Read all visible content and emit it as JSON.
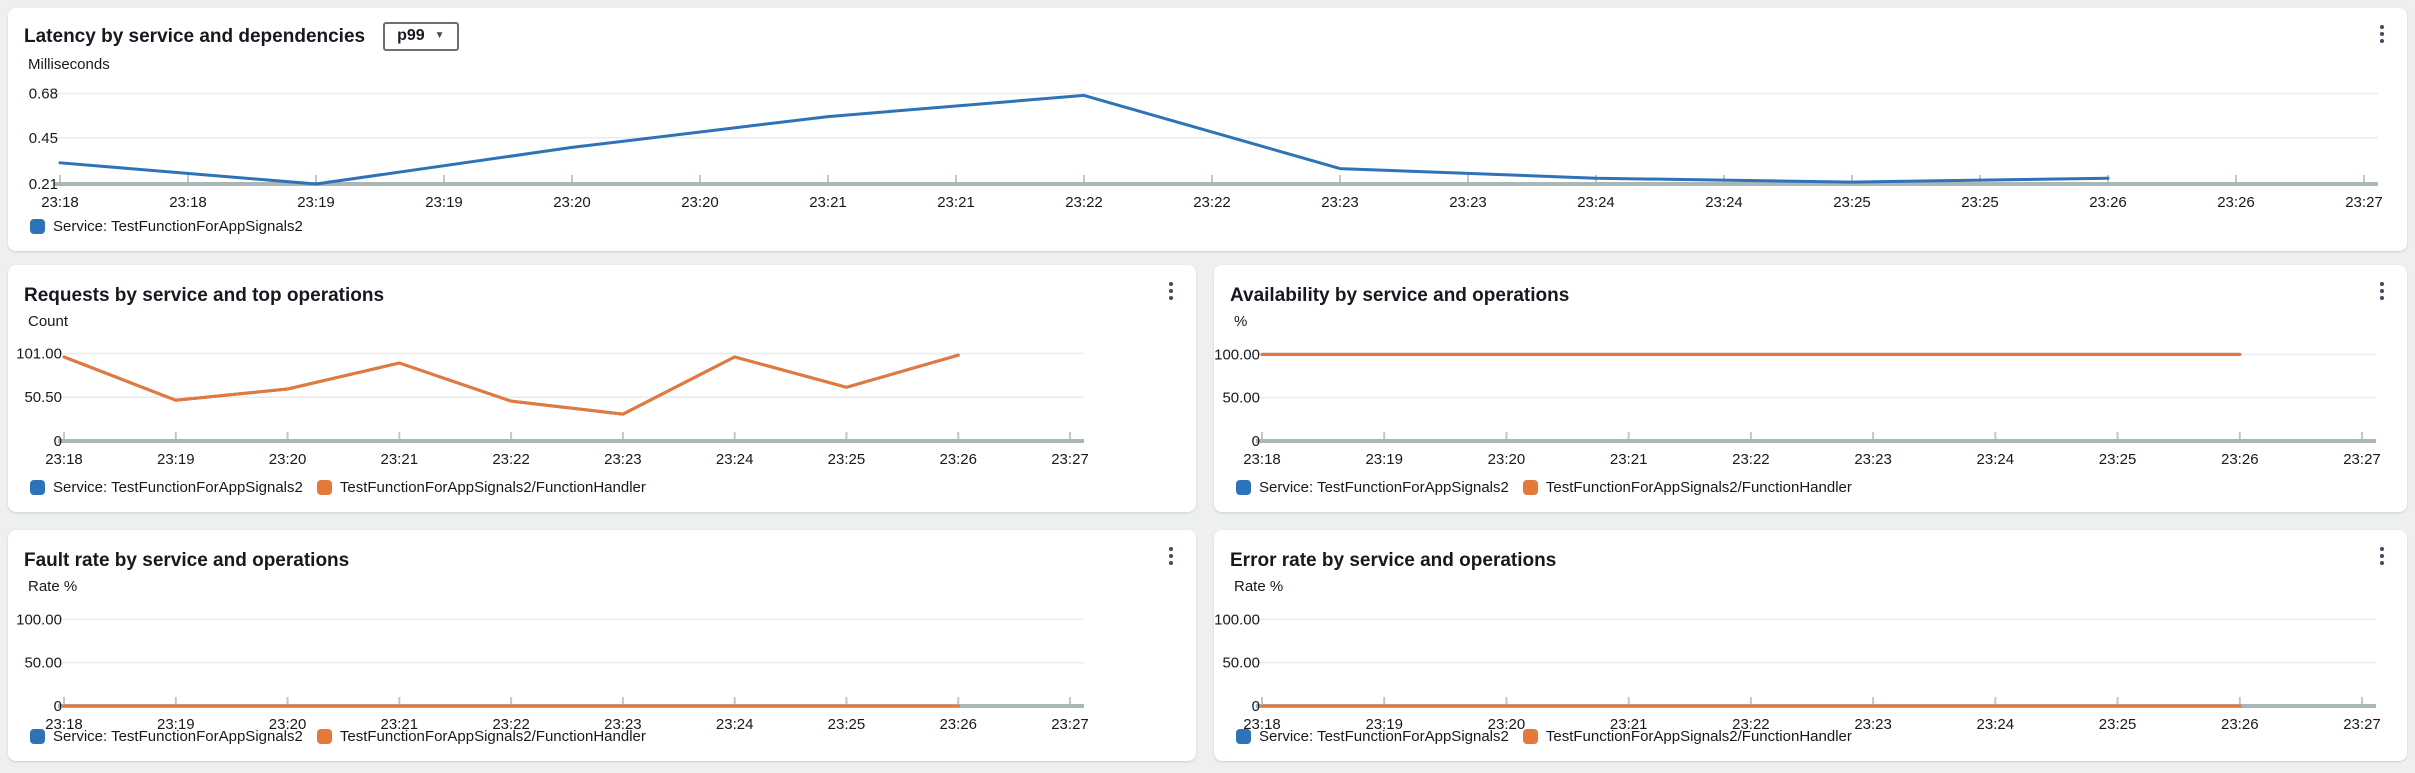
{
  "colors": {
    "blue": "#2e72b8",
    "orange": "#e5793a",
    "grid": "#e9ebed",
    "axis": "#aab7b8",
    "tick_stub": "#c1c8ca",
    "text": "#16191f",
    "panel_bg": "#ffffff",
    "page_bg": "#eef0f0"
  },
  "ui": {
    "stat_dropdown": {
      "value": "p99",
      "caret": "▼"
    },
    "panel_menu_icon": "kebab-vertical-dots"
  },
  "chart_data": [
    {
      "id": "latency",
      "type": "line",
      "title": "Latency by service and dependencies",
      "stat_selector": "p99",
      "ylabel": "Milliseconds",
      "ylim": [
        0.21,
        0.75
      ],
      "y_ticks": [
        {
          "v": 0.68,
          "label": "0.68"
        },
        {
          "v": 0.45,
          "label": "0.45"
        },
        {
          "v": 0.21,
          "label": "0.21"
        }
      ],
      "x_tick_labels": [
        "23:18",
        "23:18",
        "23:19",
        "23:19",
        "23:20",
        "23:20",
        "23:21",
        "23:21",
        "23:22",
        "23:22",
        "23:23",
        "23:23",
        "23:24",
        "23:24",
        "23:25",
        "23:25",
        "23:26",
        "23:26",
        "23:27"
      ],
      "x": [
        "23:18",
        "23:19",
        "23:20",
        "23:21",
        "23:22",
        "23:23",
        "23:24",
        "23:25",
        "23:26"
      ],
      "series": [
        {
          "name": "Service: TestFunctionForAppSignals2",
          "color": "#2e72b8",
          "values": [
            0.32,
            0.21,
            0.4,
            0.56,
            0.67,
            0.29,
            0.24,
            0.22,
            0.24
          ]
        }
      ],
      "legend": [
        {
          "label": "Service: TestFunctionForAppSignals2",
          "color": "#2e72b8"
        }
      ],
      "legend_position": "bottom",
      "grid": true
    },
    {
      "id": "requests",
      "type": "line",
      "title": "Requests by service and top operations",
      "ylabel": "Count",
      "ylim": [
        0,
        120
      ],
      "y_ticks": [
        {
          "v": 101,
          "label": "101.00"
        },
        {
          "v": 50.5,
          "label": "50.50"
        },
        {
          "v": 0,
          "label": "0"
        }
      ],
      "x_tick_labels": [
        "23:18",
        "23:19",
        "23:20",
        "23:21",
        "23:22",
        "23:23",
        "23:24",
        "23:25",
        "23:26",
        "23:27"
      ],
      "x": [
        "23:18",
        "23:19",
        "23:20",
        "23:21",
        "23:22",
        "23:23",
        "23:24",
        "23:25",
        "23:26"
      ],
      "series": [
        {
          "name": "Service: TestFunctionForAppSignals2",
          "color": "#2e72b8",
          "values": [
            97,
            47,
            60,
            90,
            46,
            31,
            97,
            62,
            99
          ]
        },
        {
          "name": "TestFunctionForAppSignals2/FunctionHandler",
          "color": "#e5793a",
          "values": [
            97,
            47,
            60,
            90,
            46,
            31,
            97,
            62,
            99
          ]
        }
      ],
      "legend": [
        {
          "label": "Service: TestFunctionForAppSignals2",
          "color": "#2e72b8"
        },
        {
          "label": "TestFunctionForAppSignals2/FunctionHandler",
          "color": "#e5793a"
        }
      ],
      "legend_position": "bottom",
      "grid": true
    },
    {
      "id": "availability",
      "type": "line",
      "title": "Availability by service and operations",
      "ylabel": "%",
      "ylim": [
        0,
        120
      ],
      "y_ticks": [
        {
          "v": 100,
          "label": "100.00"
        },
        {
          "v": 50,
          "label": "50.00"
        },
        {
          "v": 0,
          "label": "0"
        }
      ],
      "x_tick_labels": [
        "23:18",
        "23:19",
        "23:20",
        "23:21",
        "23:22",
        "23:23",
        "23:24",
        "23:25",
        "23:26",
        "23:27"
      ],
      "x": [
        "23:18",
        "23:19",
        "23:20",
        "23:21",
        "23:22",
        "23:23",
        "23:24",
        "23:25",
        "23:26"
      ],
      "series": [
        {
          "name": "Service: TestFunctionForAppSignals2",
          "color": "#2e72b8",
          "values": [
            100,
            100,
            100,
            100,
            100,
            100,
            100,
            100,
            100
          ]
        },
        {
          "name": "TestFunctionForAppSignals2/FunctionHandler",
          "color": "#e5793a",
          "values": [
            100,
            100,
            100,
            100,
            100,
            100,
            100,
            100,
            100
          ]
        }
      ],
      "legend": [
        {
          "label": "Service: TestFunctionForAppSignals2",
          "color": "#2e72b8"
        },
        {
          "label": "TestFunctionForAppSignals2/FunctionHandler",
          "color": "#e5793a"
        }
      ],
      "legend_position": "bottom",
      "grid": true
    },
    {
      "id": "fault-rate",
      "type": "line",
      "title": "Fault rate by service and operations",
      "ylabel": "Rate %",
      "ylim": [
        0,
        120
      ],
      "y_ticks": [
        {
          "v": 100,
          "label": "100.00"
        },
        {
          "v": 50,
          "label": "50.00"
        },
        {
          "v": 0,
          "label": "0"
        }
      ],
      "x_tick_labels": [
        "23:18",
        "23:19",
        "23:20",
        "23:21",
        "23:22",
        "23:23",
        "23:24",
        "23:25",
        "23:26",
        "23:27"
      ],
      "x": [
        "23:18",
        "23:19",
        "23:20",
        "23:21",
        "23:22",
        "23:23",
        "23:24",
        "23:25",
        "23:26"
      ],
      "series": [
        {
          "name": "Service: TestFunctionForAppSignals2",
          "color": "#2e72b8",
          "values": [
            0,
            0,
            0,
            0,
            0,
            0,
            0,
            0,
            0
          ]
        },
        {
          "name": "TestFunctionForAppSignals2/FunctionHandler",
          "color": "#e5793a",
          "values": [
            0,
            0,
            0,
            0,
            0,
            0,
            0,
            0,
            0
          ]
        }
      ],
      "legend": [
        {
          "label": "Service: TestFunctionForAppSignals2",
          "color": "#2e72b8"
        },
        {
          "label": "TestFunctionForAppSignals2/FunctionHandler",
          "color": "#e5793a"
        }
      ],
      "legend_position": "bottom",
      "grid": true
    },
    {
      "id": "error-rate",
      "type": "line",
      "title": "Error rate by service and operations",
      "ylabel": "Rate %",
      "ylim": [
        0,
        120
      ],
      "y_ticks": [
        {
          "v": 100,
          "label": "100.00"
        },
        {
          "v": 50,
          "label": "50.00"
        },
        {
          "v": 0,
          "label": "0"
        }
      ],
      "x_tick_labels": [
        "23:18",
        "23:19",
        "23:20",
        "23:21",
        "23:22",
        "23:23",
        "23:24",
        "23:25",
        "23:26",
        "23:27"
      ],
      "x": [
        "23:18",
        "23:19",
        "23:20",
        "23:21",
        "23:22",
        "23:23",
        "23:24",
        "23:25",
        "23:26"
      ],
      "series": [
        {
          "name": "Service: TestFunctionForAppSignals2",
          "color": "#2e72b8",
          "values": [
            0,
            0,
            0,
            0,
            0,
            0,
            0,
            0,
            0
          ]
        },
        {
          "name": "TestFunctionForAppSignals2/FunctionHandler",
          "color": "#e5793a",
          "values": [
            0,
            0,
            0,
            0,
            0,
            0,
            0,
            0,
            0
          ]
        }
      ],
      "legend": [
        {
          "label": "Service: TestFunctionForAppSignals2",
          "color": "#2e72b8"
        },
        {
          "label": "TestFunctionForAppSignals2/FunctionHandler",
          "color": "#e5793a"
        }
      ],
      "legend_position": "bottom",
      "grid": true
    }
  ]
}
